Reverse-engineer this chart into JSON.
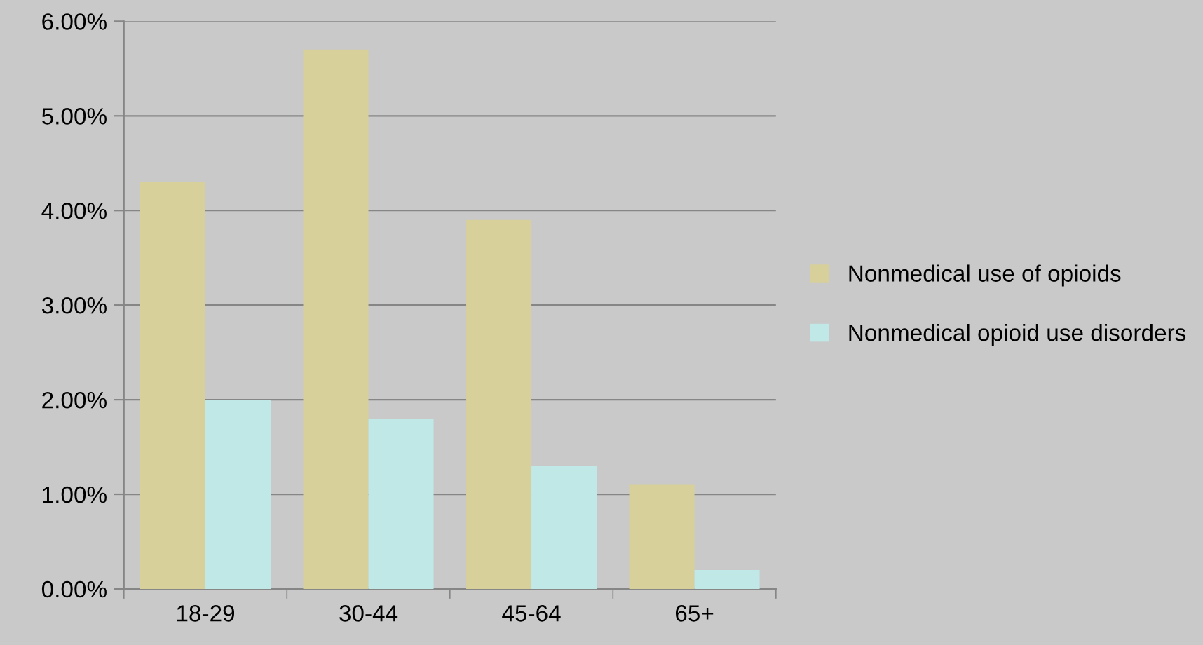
{
  "chart_data": {
    "type": "bar",
    "categories": [
      "18-29",
      "30-44",
      "45-64",
      "65+"
    ],
    "series": [
      {
        "name": "Nonmedical use of opioids",
        "color": "#d8d09a",
        "values": [
          4.3,
          5.7,
          3.9,
          1.1
        ]
      },
      {
        "name": "Nonmedical opioid use disorders",
        "color": "#bfe8e6",
        "values": [
          2.0,
          1.8,
          1.3,
          0.2
        ]
      }
    ],
    "ylim": [
      0,
      6
    ],
    "yticks": [
      {
        "value": 0,
        "label": "0.00%"
      },
      {
        "value": 1,
        "label": "1.00%"
      },
      {
        "value": 2,
        "label": "2.00%"
      },
      {
        "value": 3,
        "label": "3.00%"
      },
      {
        "value": 4,
        "label": "4.00%"
      },
      {
        "value": 5,
        "label": "5.00%"
      },
      {
        "value": 6,
        "label": "6.00%"
      }
    ],
    "grid": "y",
    "legend": "right"
  }
}
